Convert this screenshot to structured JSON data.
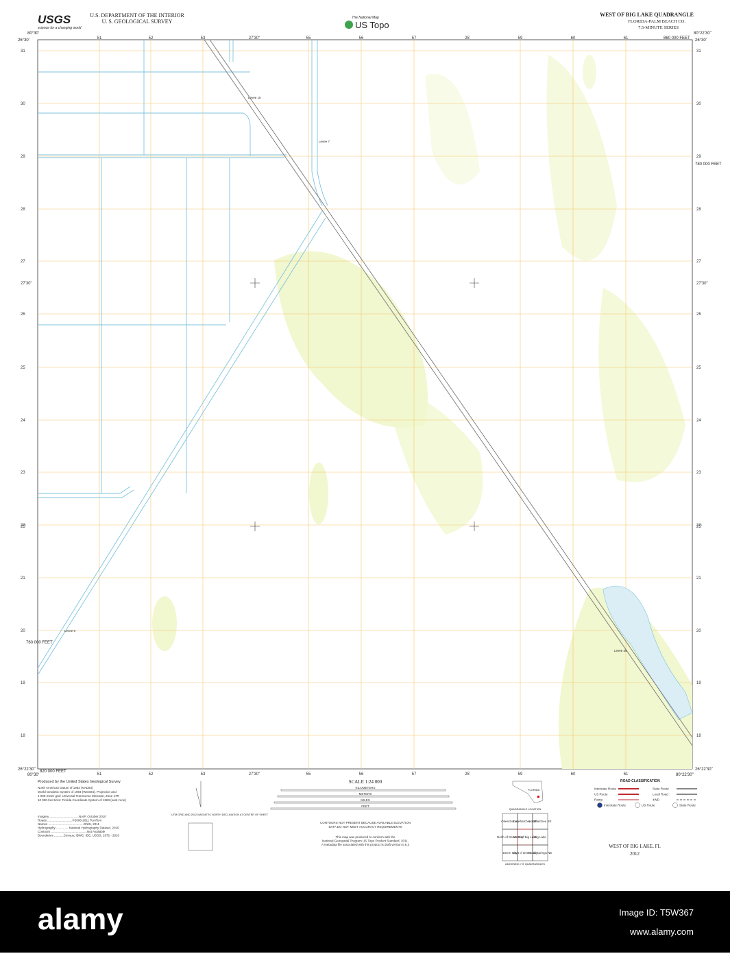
{
  "header": {
    "agency_logo": "USGS",
    "agency_tagline": "science for a changing world",
    "department": "U.S. DEPARTMENT OF THE INTERIOR",
    "survey": "U. S. GEOLOGICAL SURVEY",
    "program_top": "The National Map",
    "program": "US Topo",
    "quad_title": "WEST OF BIG LAKE QUADRANGLE",
    "quad_region": "FLORIDA-PALM BEACH CO.",
    "quad_series": "7.5-MINUTE SERIES"
  },
  "map": {
    "corners": {
      "top_left_lon": "80°30'",
      "top_left_lat": "26°30'",
      "top_right_lon": "80°22'30\"",
      "top_right_lat": "26°30'",
      "bottom_left_lon": "80°30'",
      "bottom_left_lat": "26°22'30\"",
      "bottom_right_lon": "80°22'30\"",
      "bottom_right_lat": "26°22'30\""
    },
    "easting_ticks": [
      "51",
      "52",
      "53",
      "27'30\"",
      "55",
      "56",
      "57",
      "25'",
      "59",
      "60",
      "61"
    ],
    "northing_ticks": [
      "31",
      "30",
      "29",
      "28",
      "27",
      "27'30\"",
      "26",
      "25",
      "24",
      "23",
      "22",
      "25'",
      "21",
      "20",
      "19",
      "18"
    ],
    "easting_feet_left": "820 000 FEET",
    "easting_feet_right": "860 000 FEET",
    "northing_feet_right": "780 000 FEET",
    "northing_feet_left": "760 000 FEET",
    "features": [
      "Levee 15",
      "Levee 7",
      "Levee 6",
      "Levee 39"
    ]
  },
  "footer": {
    "produced_by": "Produced by the United States Geological Survey",
    "datum_notes": [
      "North American Datum of 1983 (NAD83)",
      "World Geodetic System of 1984 (WGS84). Projection and",
      "1 000-meter grid: Universal Transverse Mercator, Zone 17R",
      "10 000-foot ticks: Florida Coordinate System of 1983 (east zone)"
    ],
    "sources": [
      "Imagery ..................................NAIP, October 2010",
      "Roads .............................©2006-2011 TomTom",
      "Names .........................................GNIS, 2011",
      "Hydrography ...............National Hydrography Dataset, 2010",
      "Contours ..........................................Not Available",
      "Boundaries ...........Census, IBWC, IBC, USGS, 1972 - 2010"
    ],
    "declination": "UTM GRID AND 2012 MAGNETIC NORTH DECLINATION AT CENTER OF SHEET",
    "scale": "SCALE 1:24 000",
    "scale_units": [
      "KILOMETERS",
      "METERS",
      "MILES",
      "FEET"
    ],
    "contour_note": [
      "CONTOURS NOT PRESENT BECAUSE AVAILABLE ELEVATION",
      "DATA DO NOT MEET ACCURACY REQUIREMENTS"
    ],
    "standard_note": [
      "This map was produced to conform with the",
      "National Geospatial Program US Topo Product Standard, 2011.",
      "A metadata file associated with this product is draft version 0.6.3"
    ],
    "state": "FLORIDA",
    "quad_location": "QUADRANGLE LOCATION",
    "adjoining": [
      "Okeechobee",
      "Loxahatchee SW",
      "Loxahatchee SE",
      "North of Deem City",
      "West of Big Lake",
      "Big Lake",
      "Deem City",
      "East of Deem City",
      "Coral Springs NE"
    ],
    "adjoining_title": "ADJOINING 7.5' QUADRANGLES",
    "road_classification": "ROAD CLASSIFICATION",
    "road_types": [
      "Interstate Route",
      "US Route",
      "Ramp",
      "State Route",
      "Local Road",
      "4WD"
    ],
    "route_shields": [
      "Interstate Route",
      "US Route",
      "State Route"
    ],
    "sheet_name": "WEST OF BIG LAKE, FL",
    "year": "2012"
  },
  "watermark": {
    "brand": "alamy",
    "image_id": "Image ID: T5W367",
    "site": "www.alamy.com"
  }
}
